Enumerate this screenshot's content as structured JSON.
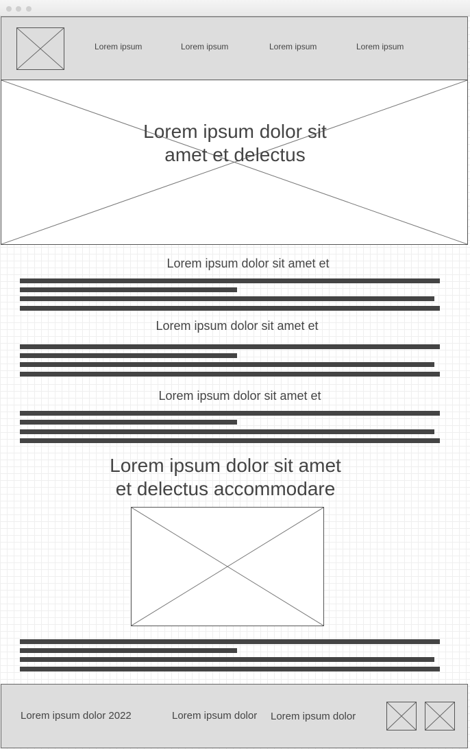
{
  "header": {
    "nav": [
      "Lorem ipsum",
      "Lorem ipsum",
      "Lorem ipsum",
      "Lorem ipsum"
    ]
  },
  "hero": {
    "title_line1": "Lorem ipsum dolor sit",
    "title_line2": "amet et delectus"
  },
  "sections": [
    {
      "heading": "Lorem ipsum dolor sit amet et"
    },
    {
      "heading": "Lorem ipsum dolor sit amet et"
    },
    {
      "heading": "Lorem ipsum dolor sit amet et"
    }
  ],
  "feature": {
    "title_line1": "Lorem ipsum dolor sit amet",
    "title_line2": "et delectus accommodare"
  },
  "footer": {
    "copyright": "Lorem ipsum dolor 2022",
    "link1": "Lorem ipsum dolor",
    "link2": "Lorem ipsum dolor"
  },
  "colors": {
    "chrome": "#dddddd",
    "text_bar": "#444444"
  }
}
